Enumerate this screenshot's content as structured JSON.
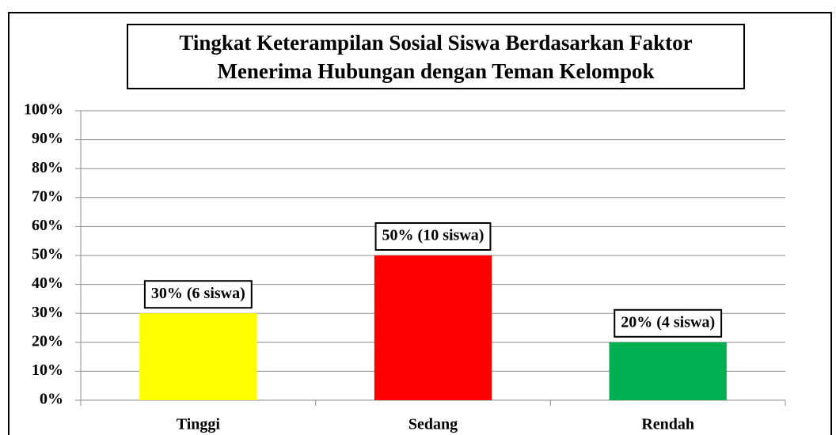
{
  "chart_data": {
    "type": "bar",
    "title": "Tingkat Keterampilan Sosial Siswa Berdasarkan Faktor\nMenerima Hubungan dengan Teman Kelompok",
    "categories": [
      "Tinggi",
      "Sedang",
      "Rendah"
    ],
    "values": [
      30,
      50,
      20
    ],
    "value_labels": [
      "30% (6 siswa)",
      "50% (10 siswa)",
      "20% (4 siswa)"
    ],
    "colors": [
      "#ffff00",
      "#ff0000",
      "#00b050"
    ],
    "ylim": [
      0,
      100
    ],
    "yticks": [
      {
        "value": 0,
        "label": "0%"
      },
      {
        "value": 10,
        "label": "10%"
      },
      {
        "value": 20,
        "label": "20%"
      },
      {
        "value": 30,
        "label": "30%"
      },
      {
        "value": 40,
        "label": "40%"
      },
      {
        "value": 50,
        "label": "50%"
      },
      {
        "value": 60,
        "label": "60%"
      },
      {
        "value": 70,
        "label": "70%"
      },
      {
        "value": 80,
        "label": "80%"
      },
      {
        "value": 90,
        "label": "90%"
      },
      {
        "value": 100,
        "label": "100%"
      }
    ],
    "grid": true
  }
}
